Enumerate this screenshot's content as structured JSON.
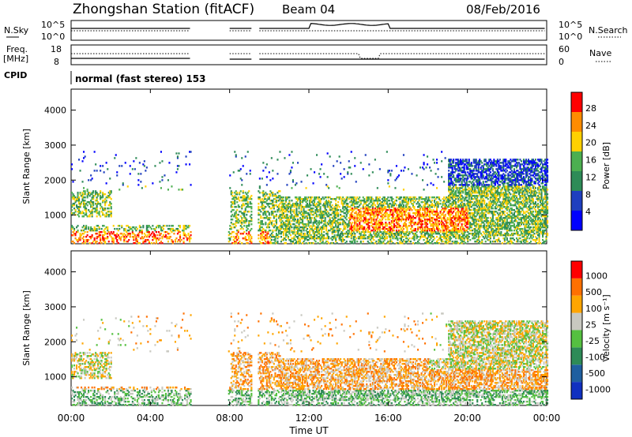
{
  "header": {
    "station": "Zhongshan Station (fitACF)",
    "beam": "Beam 04",
    "date": "08/Feb/2016"
  },
  "strips": {
    "nsky_label": "N.Sky",
    "nsearch_label": "N.Search",
    "freq_label_1": "Freq.",
    "freq_label_2": "[MHz]",
    "nave_label": "Nave",
    "cpid_label": "CPID",
    "cpid_text": "normal (fast stereo) 153",
    "noise_left_ticks": [
      "10^5",
      "10^0"
    ],
    "noise_right_ticks": [
      "10^5",
      "10^0"
    ],
    "freq_ticks": [
      "18",
      "8"
    ],
    "nave_ticks": [
      "60",
      "0"
    ]
  },
  "chart_data": [
    {
      "type": "heatmap",
      "name": "power",
      "ylabel": "Slant Range [km]",
      "yticks": [
        "4000",
        "3000",
        "2000",
        "1000"
      ],
      "ylim": [
        180,
        4600
      ],
      "xlim": [
        0,
        24
      ],
      "colorbar_label": "Power [dB]",
      "colorbar_ticks": [
        "28",
        "24",
        "20",
        "16",
        "12",
        "8",
        "4"
      ],
      "colorbar_colors": [
        "#0000ff",
        "#1f3fbf",
        "#2e8b57",
        "#4caf50",
        "#ffd000",
        "#ff8c00",
        "#ff0000"
      ]
    },
    {
      "type": "heatmap",
      "name": "velocity",
      "ylabel": "Slant Range [km]",
      "yticks": [
        "4000",
        "3000",
        "2000",
        "1000"
      ],
      "ylim": [
        180,
        4600
      ],
      "xlim": [
        0,
        24
      ],
      "colorbar_label": "Velocity [m s⁻¹]",
      "colorbar_ticks": [
        "1000",
        "500",
        "100",
        "25",
        "-25",
        "-100",
        "-500",
        "-1000"
      ],
      "colorbar_colors": [
        "#1030c0",
        "#1f5fa0",
        "#2e8b57",
        "#55c040",
        "#c8c8c0",
        "#ffa500",
        "#ff7000",
        "#ff0000"
      ]
    }
  ],
  "xaxis": {
    "label": "Time UT",
    "ticks": [
      "00:00",
      "04:00",
      "08:00",
      "12:00",
      "16:00",
      "20:00",
      "00:00"
    ]
  }
}
